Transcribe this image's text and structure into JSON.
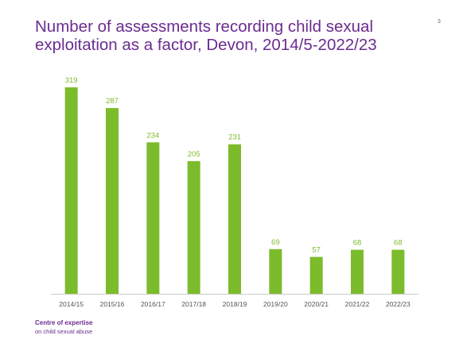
{
  "slide": {
    "title": "Number of assessments recording child sexual exploitation as a factor, Devon, 2014/5-2022/23",
    "page_number": "3",
    "footer_title": "Centre of expertise",
    "footer_subtitle": "on child sexual abuse"
  },
  "colors": {
    "bar": "#7cbb2b",
    "label": "#7cbb2b",
    "title": "#6b2c91",
    "axis": "#cccccc"
  },
  "chart_data": {
    "type": "bar",
    "title": "Number of assessments recording child sexual exploitation as a factor, Devon, 2014/5-2022/23",
    "categories": [
      "2014/15",
      "2015/16",
      "2016/17",
      "2017/18",
      "2018/19",
      "2019/20",
      "2020/21",
      "2021/22",
      "2022/23"
    ],
    "values": [
      319,
      287,
      234,
      205,
      231,
      69,
      57,
      68,
      68
    ],
    "data_labels": [
      "319",
      "287",
      "234",
      "205",
      "231",
      "69",
      "57",
      "68",
      "68"
    ],
    "ylim": [
      0,
      319
    ],
    "grid": false,
    "legend": "none"
  }
}
